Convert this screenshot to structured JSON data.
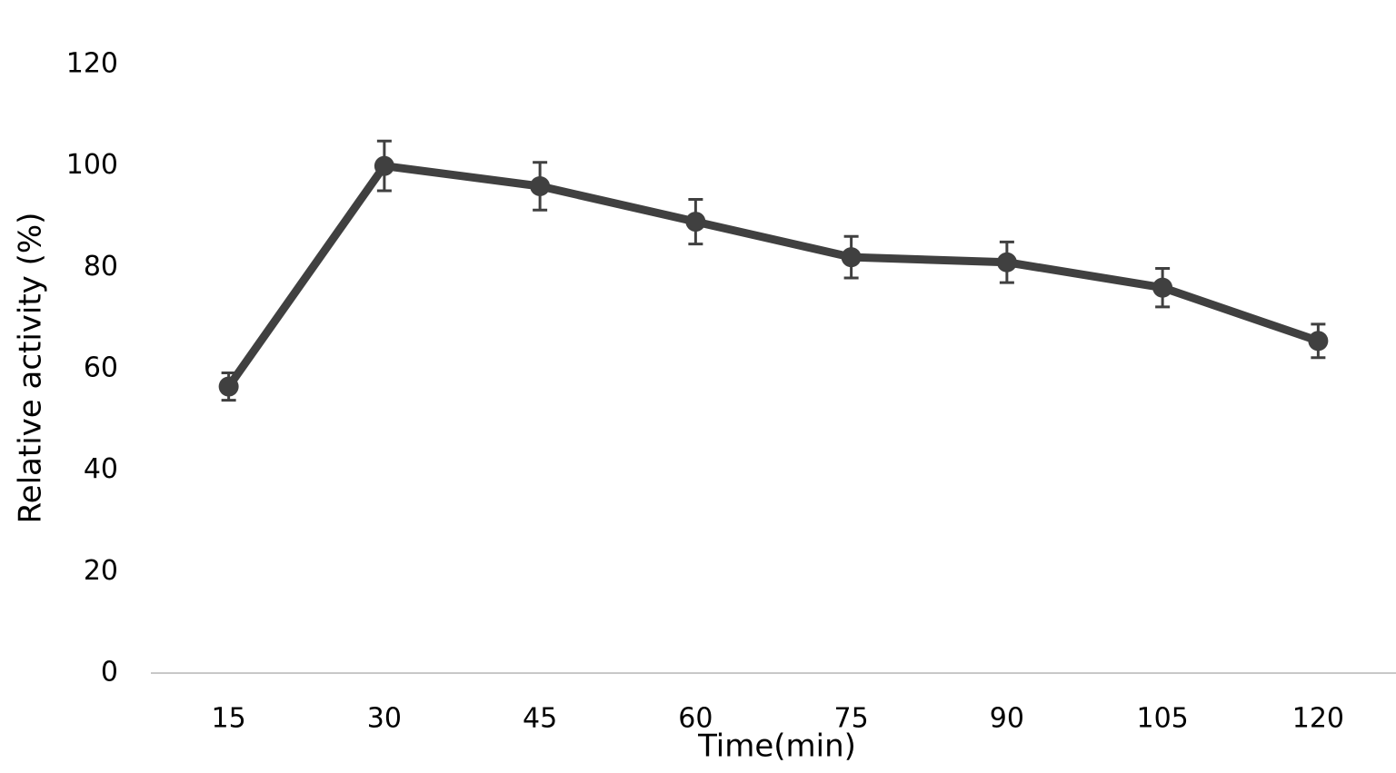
{
  "chart_data": {
    "type": "line",
    "x_label": "Time(min)",
    "y_label": "Relative activity (%)",
    "categories": [
      "15",
      "30",
      "45",
      "60",
      "75",
      "90",
      "105",
      "120"
    ],
    "values": [
      56.5,
      100,
      96,
      89,
      82,
      81,
      76,
      65.5
    ],
    "errors": [
      2.7,
      4.9,
      4.7,
      4.4,
      4.1,
      4,
      3.8,
      3.3
    ],
    "color": "#404040",
    "ylim": [
      0,
      120
    ],
    "yticks": [
      0,
      20,
      40,
      60,
      80,
      100,
      120
    ],
    "grid": false
  }
}
